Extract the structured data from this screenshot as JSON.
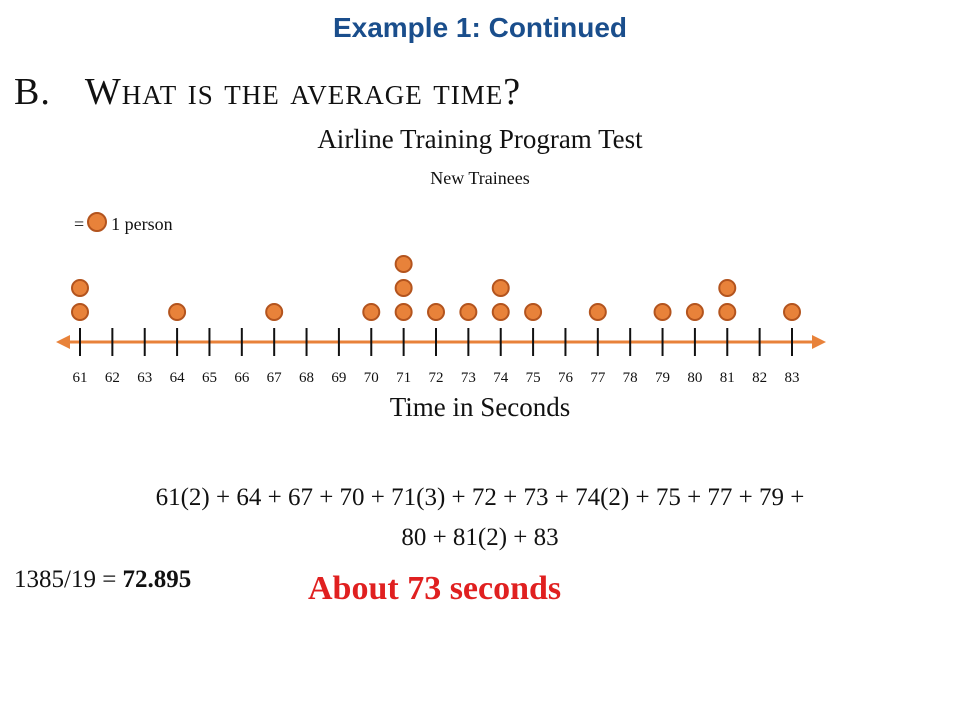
{
  "header": {
    "title": "Example 1: Continued"
  },
  "question": {
    "letter": "B.",
    "text": "What is the average time?"
  },
  "legend": {
    "prefix": "=",
    "text": "1 person"
  },
  "chart_data": {
    "type": "scatter",
    "title": "Airline Training Program Test",
    "subtitle": "New Trainees",
    "xlabel": "Time in Seconds",
    "ylabel": "",
    "x_ticks": [
      61,
      62,
      63,
      64,
      65,
      66,
      67,
      68,
      69,
      70,
      71,
      72,
      73,
      74,
      75,
      76,
      77,
      78,
      79,
      80,
      81,
      82,
      83
    ],
    "xlim": [
      61,
      83
    ],
    "counts": [
      {
        "x": 61,
        "count": 2
      },
      {
        "x": 64,
        "count": 1
      },
      {
        "x": 67,
        "count": 1
      },
      {
        "x": 70,
        "count": 1
      },
      {
        "x": 71,
        "count": 3
      },
      {
        "x": 72,
        "count": 1
      },
      {
        "x": 73,
        "count": 1
      },
      {
        "x": 74,
        "count": 2
      },
      {
        "x": 75,
        "count": 1
      },
      {
        "x": 77,
        "count": 1
      },
      {
        "x": 79,
        "count": 1
      },
      {
        "x": 80,
        "count": 1
      },
      {
        "x": 81,
        "count": 2
      },
      {
        "x": 83,
        "count": 1
      }
    ],
    "dot_color": "#e8823a",
    "dot_outline": "#b3541e",
    "axis_color": "#e8823a"
  },
  "work": {
    "equation_line1": "61(2) + 64 + 67 + 70 + 71(3) + 72 + 73 + 74(2) + 75 + 77 + 79 +",
    "equation_line2": "80 + 81(2) + 83",
    "result_prefix": "1385/19 = ",
    "result_value": "72.895",
    "answer": "About 73 seconds"
  }
}
